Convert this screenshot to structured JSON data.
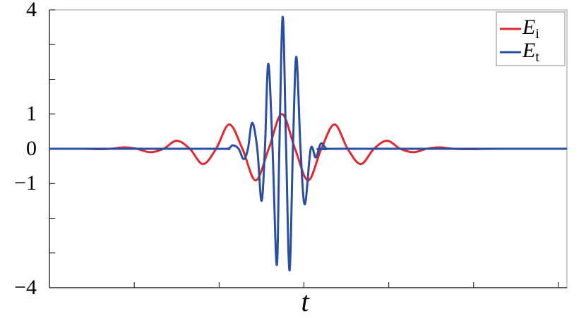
{
  "chart_data": {
    "type": "line",
    "xlabel": "t",
    "xlim": [
      0,
      6.1
    ],
    "xtick_marks": [
      1,
      2,
      3,
      4,
      5,
      6
    ],
    "ylim": [
      -4,
      4
    ],
    "yticks": [
      {
        "value": -4,
        "label": "−4"
      },
      {
        "value": -1,
        "label": "−1"
      },
      0,
      1,
      4
    ],
    "ytick_marks": [
      -3,
      -2,
      2,
      3
    ],
    "legend": "upper right",
    "series": [
      {
        "name": "E",
        "subscript": "i",
        "color": "#e0282e",
        "x": [
          0,
          0.4,
          0.57,
          0.72,
          0.88,
          1.03,
          1.19,
          1.345,
          1.5,
          1.655,
          1.81,
          1.965,
          2.12,
          2.275,
          2.43,
          2.585,
          2.74,
          2.895,
          3.05,
          3.205,
          3.36,
          3.515,
          3.67,
          3.825,
          3.98,
          4.135,
          4.29,
          4.445,
          4.6,
          4.755,
          4.91,
          5.3,
          6.1
        ],
        "values": [
          0,
          0,
          -0.01,
          0,
          0.04,
          0,
          -0.1,
          0,
          0.23,
          0,
          -0.44,
          0,
          0.7,
          0,
          -0.91,
          0,
          1,
          0,
          -0.91,
          0,
          0.7,
          0,
          -0.44,
          0,
          0.23,
          0,
          -0.1,
          0,
          0.04,
          0,
          -0.01,
          0,
          0
        ]
      },
      {
        "name": "E",
        "subscript": "t",
        "color": "#2a4fa0",
        "x": [
          0,
          1.91,
          2.1,
          2.16,
          2.23,
          2.29,
          2.34,
          2.39,
          2.45,
          2.5,
          2.54,
          2.58,
          2.63,
          2.68,
          2.71,
          2.75,
          2.79,
          2.83,
          2.87,
          2.91,
          2.96,
          3.01,
          3.08,
          3.14,
          3.2,
          3.27,
          3.4,
          6.1
        ],
        "values": [
          0,
          0,
          0,
          0.1,
          0,
          -0.3,
          0,
          0.75,
          0,
          -1.5,
          0,
          2.45,
          0,
          -3.35,
          0,
          3.8,
          0,
          -3.5,
          0,
          2.65,
          0,
          -1.6,
          0,
          -0.25,
          0.15,
          0,
          0,
          0
        ]
      }
    ]
  }
}
